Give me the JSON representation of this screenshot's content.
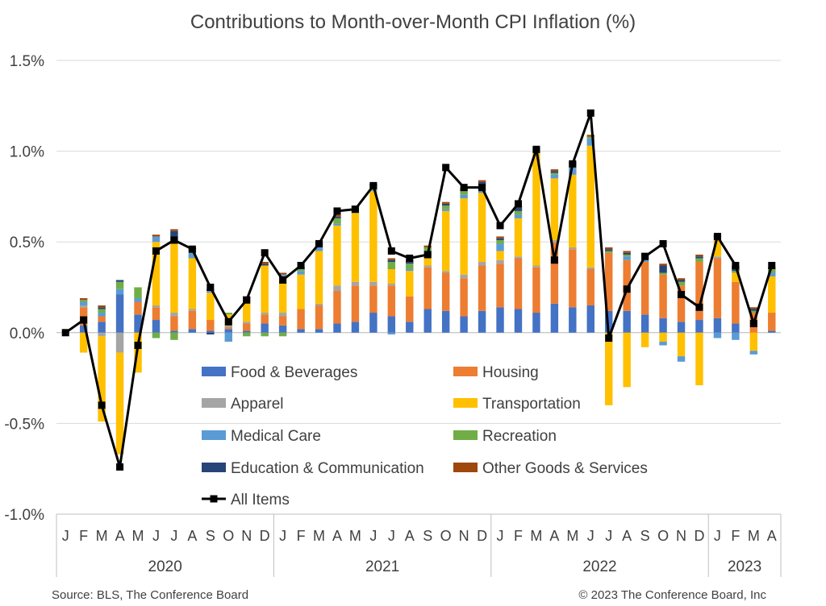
{
  "chart_data": {
    "type": "bar",
    "subtype": "stacked-bar-with-line",
    "title": "Contributions to Month-over-Month CPI Inflation (%)",
    "xlabel": "",
    "ylabel": "",
    "ylim": [
      -1.0,
      1.5
    ],
    "yticks": [
      "1.5%",
      "1.0%",
      "0.5%",
      "0.0%",
      "-0.5%",
      "-1.0%"
    ],
    "ytick_values": [
      1.5,
      1.0,
      0.5,
      0.0,
      -0.5,
      -1.0
    ],
    "grid": true,
    "legend_position": "inside-bottom-center",
    "categories": [
      "J",
      "F",
      "M",
      "A",
      "M",
      "J",
      "J",
      "A",
      "S",
      "O",
      "N",
      "D",
      "J",
      "F",
      "M",
      "A",
      "M",
      "J",
      "J",
      "A",
      "S",
      "O",
      "N",
      "D",
      "J",
      "F",
      "M",
      "A",
      "M",
      "J",
      "J",
      "A",
      "S",
      "O",
      "N",
      "D",
      "J",
      "F",
      "M",
      "A"
    ],
    "years": [
      {
        "label": "2020",
        "months": 12
      },
      {
        "label": "2021",
        "months": 12
      },
      {
        "label": "2022",
        "months": 12
      },
      {
        "label": "2023",
        "months": 4
      }
    ],
    "series": [
      {
        "name": "Food & Beverages",
        "color": "#4472C4",
        "values": [
          0.0,
          0.04,
          0.06,
          0.21,
          0.1,
          0.07,
          0.01,
          0.02,
          0.01,
          0.02,
          0.01,
          0.05,
          0.04,
          0.02,
          0.02,
          0.05,
          0.06,
          0.11,
          0.09,
          0.06,
          0.13,
          0.12,
          0.09,
          0.12,
          0.14,
          0.13,
          0.11,
          0.16,
          0.14,
          0.15,
          0.12,
          0.12,
          0.1,
          0.08,
          0.06,
          0.07,
          0.08,
          0.05,
          0.0,
          0.01
        ]
      },
      {
        "name": "Housing",
        "color": "#ED7D31",
        "values": [
          0.0,
          0.1,
          0.03,
          0.0,
          0.07,
          0.07,
          0.08,
          0.1,
          0.06,
          0.01,
          0.04,
          0.05,
          0.05,
          0.11,
          0.13,
          0.18,
          0.2,
          0.15,
          0.17,
          0.14,
          0.23,
          0.21,
          0.21,
          0.25,
          0.24,
          0.28,
          0.25,
          0.34,
          0.32,
          0.2,
          0.32,
          0.28,
          0.29,
          0.24,
          0.2,
          0.32,
          0.33,
          0.23,
          0.11,
          0.1
        ]
      },
      {
        "name": "Apparel",
        "color": "#A5A5A5",
        "values": [
          0.0,
          0.01,
          -0.02,
          -0.11,
          0.0,
          0.01,
          0.02,
          0.01,
          0.0,
          0.01,
          0.01,
          0.01,
          0.02,
          0.0,
          0.01,
          0.03,
          0.02,
          0.02,
          0.01,
          0.0,
          0.01,
          0.01,
          0.02,
          0.02,
          0.02,
          0.01,
          0.01,
          0.01,
          0.01,
          0.01,
          0.0,
          0.0,
          0.0,
          0.0,
          0.0,
          0.0,
          0.01,
          0.0,
          0.0,
          0.0
        ]
      },
      {
        "name": "Transportation",
        "color": "#FFC000",
        "values": [
          0.0,
          -0.11,
          -0.47,
          -0.56,
          -0.22,
          0.35,
          0.38,
          0.28,
          0.15,
          0.06,
          0.11,
          0.26,
          0.19,
          0.19,
          0.29,
          0.33,
          0.38,
          0.5,
          0.08,
          0.14,
          0.05,
          0.33,
          0.42,
          0.38,
          0.05,
          0.21,
          0.62,
          0.34,
          0.4,
          0.67,
          -0.4,
          -0.3,
          -0.08,
          -0.05,
          -0.13,
          -0.29,
          0.1,
          0.05,
          -0.1,
          0.2
        ]
      },
      {
        "name": "Medical Care",
        "color": "#5B9BD5",
        "values": [
          0.0,
          0.02,
          0.02,
          0.03,
          0.02,
          0.03,
          0.02,
          0.03,
          0.01,
          -0.05,
          0.02,
          0.0,
          0.02,
          0.02,
          0.02,
          0.01,
          0.01,
          0.01,
          -0.01,
          0.01,
          0.01,
          0.01,
          0.02,
          0.02,
          0.04,
          0.02,
          0.02,
          0.02,
          0.04,
          0.04,
          0.0,
          0.02,
          0.02,
          -0.02,
          -0.03,
          0.0,
          -0.03,
          -0.04,
          -0.02,
          0.02
        ]
      },
      {
        "name": "Recreation",
        "color": "#70AD47",
        "values": [
          0.0,
          0.01,
          0.02,
          0.04,
          0.06,
          -0.03,
          -0.04,
          0.02,
          0.0,
          0.01,
          -0.02,
          -0.02,
          -0.02,
          0.01,
          0.01,
          0.03,
          0.02,
          0.02,
          0.04,
          0.03,
          0.04,
          0.02,
          0.02,
          0.03,
          0.02,
          0.02,
          0.01,
          0.01,
          0.02,
          0.01,
          0.01,
          0.01,
          0.01,
          0.01,
          0.02,
          0.02,
          0.01,
          0.01,
          0.01,
          0.02
        ]
      },
      {
        "name": "Education & Communication",
        "color": "#264478",
        "values": [
          0.0,
          0.0,
          0.01,
          0.01,
          0.0,
          0.0,
          0.05,
          0.0,
          -0.01,
          0.0,
          0.0,
          0.01,
          0.0,
          0.0,
          0.01,
          0.01,
          0.01,
          0.01,
          0.01,
          0.01,
          0.0,
          0.01,
          0.01,
          0.01,
          0.01,
          0.02,
          0.0,
          0.01,
          0.0,
          0.0,
          0.01,
          0.01,
          0.01,
          0.04,
          0.01,
          0.01,
          0.0,
          0.02,
          0.01,
          0.0
        ]
      },
      {
        "name": "Other Goods & Services",
        "color": "#9E480E",
        "values": [
          0.0,
          0.01,
          0.01,
          0.0,
          0.0,
          0.01,
          0.01,
          0.01,
          0.01,
          0.0,
          0.01,
          0.01,
          0.01,
          0.01,
          0.01,
          0.01,
          0.0,
          0.0,
          0.01,
          0.01,
          0.01,
          0.01,
          0.01,
          0.01,
          0.01,
          0.01,
          0.0,
          0.01,
          0.01,
          0.01,
          0.01,
          0.01,
          0.01,
          0.01,
          0.01,
          0.01,
          0.01,
          0.01,
          0.01,
          0.01
        ]
      }
    ],
    "line": {
      "name": "All Items",
      "color": "#000000",
      "values": [
        0.0,
        0.07,
        -0.4,
        -0.74,
        -0.07,
        0.45,
        0.51,
        0.46,
        0.25,
        0.06,
        0.18,
        0.44,
        0.29,
        0.37,
        0.49,
        0.67,
        0.68,
        0.81,
        0.45,
        0.41,
        0.43,
        0.91,
        0.8,
        0.8,
        0.59,
        0.71,
        1.01,
        0.4,
        0.93,
        1.21,
        -0.03,
        0.24,
        0.42,
        0.49,
        0.21,
        0.14,
        0.53,
        0.37,
        0.05,
        0.37
      ]
    }
  },
  "source": "Source: BLS, The Conference Board",
  "copyright": "© 2023 The Conference Board, Inc"
}
